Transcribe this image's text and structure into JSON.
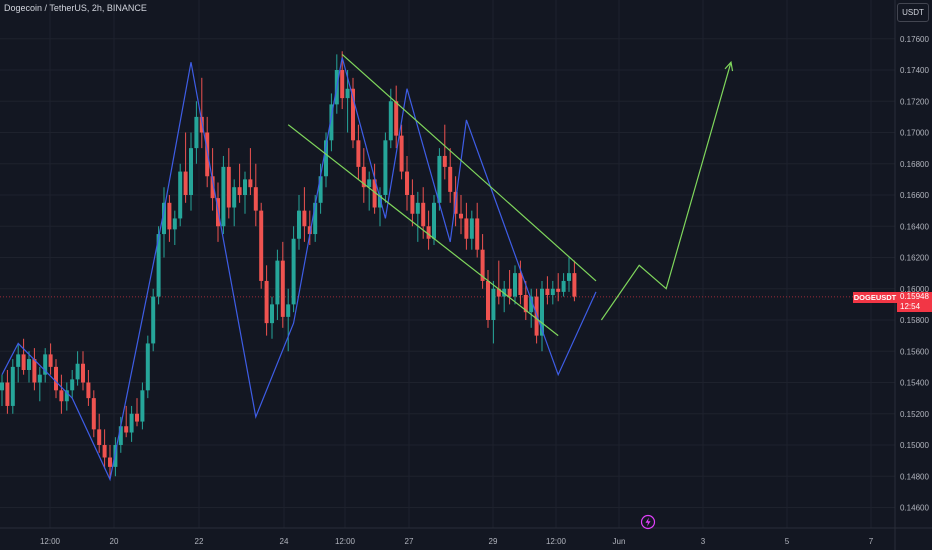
{
  "header": {
    "title": "Dogecoin / TetherUS, 2h, BINANCE",
    "currency": "USDT"
  },
  "price_tag": {
    "symbol": "DOGEUSDT",
    "price": "0.15948",
    "countdown": "12:54"
  },
  "colors": {
    "background": "#131722",
    "grid": "#1e222d",
    "up_candle": "#26a69a",
    "down_candle": "#ef5350",
    "zigzag": "#3e5de6",
    "channel": "#7fd65c",
    "projection": "#7fd65c",
    "price_line": "#f23645",
    "flash_icon": "#e040fb"
  },
  "chart_data": {
    "type": "candlestick",
    "y_axis": {
      "min": 0.1452,
      "max": 0.1772,
      "ticks": [
        "0.17600",
        "0.17400",
        "0.17200",
        "0.17000",
        "0.16800",
        "0.16600",
        "0.16400",
        "0.16200",
        "0.16000",
        "0.15800",
        "0.15600",
        "0.15400",
        "0.15200",
        "0.15000",
        "0.14800",
        "0.14600"
      ]
    },
    "x_axis": {
      "ticks": [
        "12:00",
        "20",
        "22",
        "24",
        "12:00",
        "27",
        "29",
        "12:00",
        "Jun",
        "3",
        "5",
        "7"
      ]
    },
    "last_price": 0.15948,
    "candles": [
      [
        0.1535,
        0.1545,
        0.1525,
        0.154
      ],
      [
        0.154,
        0.1548,
        0.152,
        0.1525
      ],
      [
        0.1525,
        0.1555,
        0.152,
        0.155
      ],
      [
        0.155,
        0.1565,
        0.154,
        0.1558
      ],
      [
        0.1558,
        0.1568,
        0.1545,
        0.1548
      ],
      [
        0.1548,
        0.156,
        0.154,
        0.1555
      ],
      [
        0.1555,
        0.1562,
        0.1535,
        0.154
      ],
      [
        0.154,
        0.155,
        0.1528,
        0.1545
      ],
      [
        0.1545,
        0.1562,
        0.154,
        0.1558
      ],
      [
        0.1558,
        0.1565,
        0.1545,
        0.155
      ],
      [
        0.155,
        0.1555,
        0.153,
        0.1535
      ],
      [
        0.1535,
        0.1545,
        0.152,
        0.1528
      ],
      [
        0.1528,
        0.154,
        0.1522,
        0.1535
      ],
      [
        0.1535,
        0.1548,
        0.153,
        0.1542
      ],
      [
        0.1542,
        0.156,
        0.1538,
        0.1552
      ],
      [
        0.1552,
        0.156,
        0.1535,
        0.154
      ],
      [
        0.154,
        0.1548,
        0.1525,
        0.153
      ],
      [
        0.153,
        0.1535,
        0.1505,
        0.151
      ],
      [
        0.151,
        0.152,
        0.1495,
        0.15
      ],
      [
        0.15,
        0.151,
        0.1485,
        0.1492
      ],
      [
        0.1492,
        0.15,
        0.1478,
        0.1486
      ],
      [
        0.1486,
        0.1505,
        0.148,
        0.15
      ],
      [
        0.15,
        0.1518,
        0.1495,
        0.1512
      ],
      [
        0.1512,
        0.1525,
        0.1505,
        0.1508
      ],
      [
        0.1508,
        0.1525,
        0.1502,
        0.152
      ],
      [
        0.152,
        0.153,
        0.1512,
        0.1515
      ],
      [
        0.1515,
        0.154,
        0.151,
        0.1535
      ],
      [
        0.1535,
        0.157,
        0.153,
        0.1565
      ],
      [
        0.1565,
        0.16,
        0.156,
        0.1595
      ],
      [
        0.1595,
        0.164,
        0.159,
        0.1635
      ],
      [
        0.1635,
        0.1665,
        0.162,
        0.1655
      ],
      [
        0.1655,
        0.166,
        0.163,
        0.1638
      ],
      [
        0.1638,
        0.165,
        0.1628,
        0.1645
      ],
      [
        0.1645,
        0.168,
        0.164,
        0.1675
      ],
      [
        0.1675,
        0.17,
        0.1655,
        0.166
      ],
      [
        0.166,
        0.17,
        0.165,
        0.169
      ],
      [
        0.169,
        0.172,
        0.168,
        0.171
      ],
      [
        0.171,
        0.1735,
        0.169,
        0.17
      ],
      [
        0.17,
        0.171,
        0.1665,
        0.1672
      ],
      [
        0.1672,
        0.169,
        0.165,
        0.1658
      ],
      [
        0.1658,
        0.1668,
        0.163,
        0.164
      ],
      [
        0.164,
        0.1685,
        0.1635,
        0.1678
      ],
      [
        0.1678,
        0.169,
        0.1645,
        0.1652
      ],
      [
        0.1652,
        0.167,
        0.164,
        0.1665
      ],
      [
        0.1665,
        0.168,
        0.1655,
        0.166
      ],
      [
        0.166,
        0.1675,
        0.1648,
        0.167
      ],
      [
        0.167,
        0.169,
        0.166,
        0.1665
      ],
      [
        0.1665,
        0.168,
        0.164,
        0.165
      ],
      [
        0.165,
        0.1655,
        0.16,
        0.1605
      ],
      [
        0.1605,
        0.1615,
        0.157,
        0.1578
      ],
      [
        0.1578,
        0.1595,
        0.1568,
        0.159
      ],
      [
        0.159,
        0.1625,
        0.158,
        0.1618
      ],
      [
        0.1618,
        0.163,
        0.1575,
        0.1582
      ],
      [
        0.1582,
        0.16,
        0.156,
        0.159
      ],
      [
        0.159,
        0.164,
        0.1585,
        0.1632
      ],
      [
        0.1632,
        0.166,
        0.1625,
        0.165
      ],
      [
        0.165,
        0.1665,
        0.163,
        0.164
      ],
      [
        0.164,
        0.165,
        0.1628,
        0.1635
      ],
      [
        0.1635,
        0.166,
        0.163,
        0.1655
      ],
      [
        0.1655,
        0.168,
        0.1648,
        0.1672
      ],
      [
        0.1672,
        0.17,
        0.1665,
        0.1695
      ],
      [
        0.1695,
        0.1725,
        0.1688,
        0.1718
      ],
      [
        0.1718,
        0.175,
        0.1712,
        0.174
      ],
      [
        0.174,
        0.1752,
        0.1715,
        0.1722
      ],
      [
        0.1722,
        0.174,
        0.17,
        0.1728
      ],
      [
        0.1728,
        0.1735,
        0.169,
        0.1695
      ],
      [
        0.1695,
        0.1705,
        0.167,
        0.1678
      ],
      [
        0.1678,
        0.169,
        0.1655,
        0.1665
      ],
      [
        0.1665,
        0.1675,
        0.165,
        0.167
      ],
      [
        0.167,
        0.168,
        0.1648,
        0.1652
      ],
      [
        0.1652,
        0.1665,
        0.164,
        0.166
      ],
      [
        0.166,
        0.17,
        0.1655,
        0.1695
      ],
      [
        0.1695,
        0.1728,
        0.169,
        0.172
      ],
      [
        0.172,
        0.173,
        0.169,
        0.1698
      ],
      [
        0.1698,
        0.1705,
        0.167,
        0.1675
      ],
      [
        0.1675,
        0.1685,
        0.165,
        0.166
      ],
      [
        0.166,
        0.167,
        0.164,
        0.1648
      ],
      [
        0.1648,
        0.1662,
        0.163,
        0.1655
      ],
      [
        0.1655,
        0.1665,
        0.1632,
        0.164
      ],
      [
        0.164,
        0.165,
        0.1625,
        0.1632
      ],
      [
        0.1632,
        0.166,
        0.1628,
        0.1655
      ],
      [
        0.1655,
        0.169,
        0.165,
        0.1685
      ],
      [
        0.1685,
        0.1705,
        0.167,
        0.1678
      ],
      [
        0.1678,
        0.169,
        0.1655,
        0.1662
      ],
      [
        0.1662,
        0.1672,
        0.164,
        0.1648
      ],
      [
        0.1648,
        0.166,
        0.1635,
        0.1645
      ],
      [
        0.1645,
        0.1655,
        0.1625,
        0.1632
      ],
      [
        0.1632,
        0.165,
        0.1625,
        0.1645
      ],
      [
        0.1645,
        0.1655,
        0.162,
        0.1625
      ],
      [
        0.1625,
        0.1635,
        0.16,
        0.1605
      ],
      [
        0.1605,
        0.1612,
        0.1575,
        0.158
      ],
      [
        0.158,
        0.1605,
        0.1565,
        0.16
      ],
      [
        0.16,
        0.1618,
        0.159,
        0.1595
      ],
      [
        0.1595,
        0.1605,
        0.1585,
        0.16
      ],
      [
        0.16,
        0.1612,
        0.159,
        0.1595
      ],
      [
        0.1595,
        0.1615,
        0.159,
        0.161
      ],
      [
        0.161,
        0.1618,
        0.159,
        0.1596
      ],
      [
        0.1596,
        0.1605,
        0.158,
        0.1585
      ],
      [
        0.1585,
        0.16,
        0.1575,
        0.1595
      ],
      [
        0.1595,
        0.16,
        0.1565,
        0.157
      ],
      [
        0.157,
        0.1605,
        0.156,
        0.16
      ],
      [
        0.16,
        0.1608,
        0.159,
        0.1596
      ],
      [
        0.1596,
        0.1605,
        0.159,
        0.16
      ],
      [
        0.16,
        0.161,
        0.1592,
        0.1598
      ],
      [
        0.1598,
        0.161,
        0.1595,
        0.1605
      ],
      [
        0.1605,
        0.162,
        0.1598,
        0.161
      ],
      [
        0.161,
        0.1618,
        0.1592,
        0.1595
      ]
    ],
    "zigzag": [
      [
        0.1545,
        0
      ],
      [
        0.1565,
        3
      ],
      [
        0.153,
        13
      ],
      [
        0.1478,
        20
      ],
      [
        0.165,
        30
      ],
      [
        0.1745,
        35
      ],
      [
        0.1518,
        47
      ],
      [
        0.1578,
        54
      ],
      [
        0.1748,
        63
      ],
      [
        0.1645,
        71
      ],
      [
        0.1728,
        75
      ],
      [
        0.163,
        83
      ],
      [
        0.1708,
        86
      ],
      [
        0.1545,
        103
      ],
      [
        0.1598,
        110
      ]
    ],
    "channel_upper": [
      [
        0.175,
        63
      ],
      [
        0.1605,
        110
      ]
    ],
    "channel_lower": [
      [
        0.1705,
        53
      ],
      [
        0.157,
        103
      ]
    ],
    "projection": [
      [
        0.158,
        111
      ],
      [
        0.1615,
        118
      ],
      [
        0.16,
        123
      ],
      [
        0.1745,
        135
      ]
    ]
  }
}
